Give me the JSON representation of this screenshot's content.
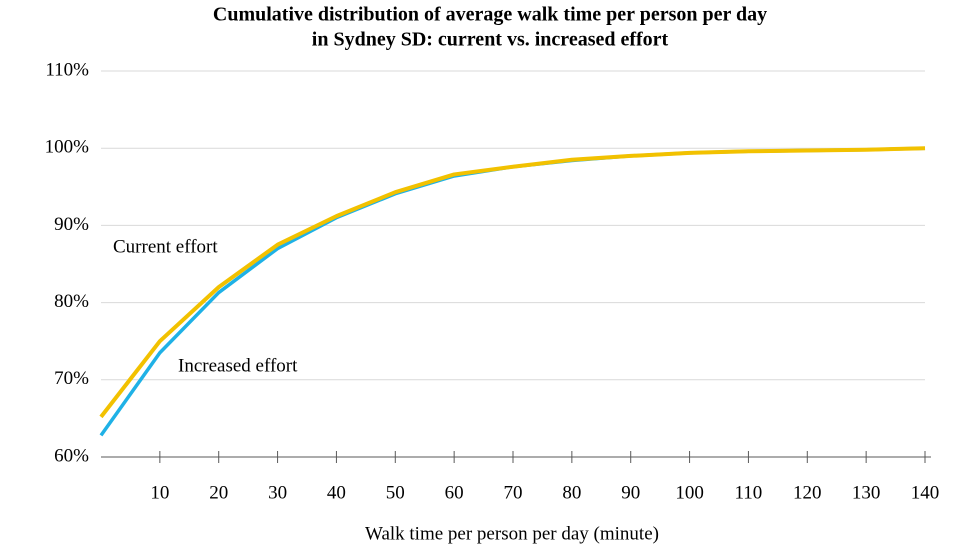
{
  "chart_data": {
    "type": "line",
    "title": [
      "Cumulative distribution of average walk time per person per day",
      "in Sydney SD: current vs. increased effort"
    ],
    "x_label": "Walk time per person per day (minute)",
    "x": [
      0,
      10,
      20,
      30,
      40,
      50,
      60,
      70,
      80,
      90,
      100,
      110,
      120,
      130,
      140
    ],
    "xlim": [
      0,
      140
    ],
    "xticks": [
      10,
      20,
      30,
      40,
      50,
      60,
      70,
      80,
      90,
      100,
      110,
      120,
      130,
      140
    ],
    "ylim": [
      60,
      110
    ],
    "yticks": [
      {
        "value": 60,
        "label": "60%"
      },
      {
        "value": 70,
        "label": "70%"
      },
      {
        "value": 80,
        "label": "80%"
      },
      {
        "value": 90,
        "label": "90%"
      },
      {
        "value": 100,
        "label": "100%"
      },
      {
        "value": 110,
        "label": "110%"
      }
    ],
    "grid": true,
    "series": [
      {
        "name": "Increased effort",
        "color": "#1fb1e6",
        "values": [
          62.8,
          73.5,
          81.3,
          87.0,
          91.0,
          94.1,
          96.4,
          97.6,
          98.4,
          99.0,
          99.4,
          99.6,
          99.7,
          99.8,
          100
        ]
      },
      {
        "name": "Current effort",
        "color": "#f2c100",
        "values": [
          65.2,
          75.0,
          82.0,
          87.5,
          91.2,
          94.3,
          96.6,
          97.6,
          98.5,
          99.0,
          99.4,
          99.6,
          99.7,
          99.8,
          100
        ]
      }
    ]
  }
}
